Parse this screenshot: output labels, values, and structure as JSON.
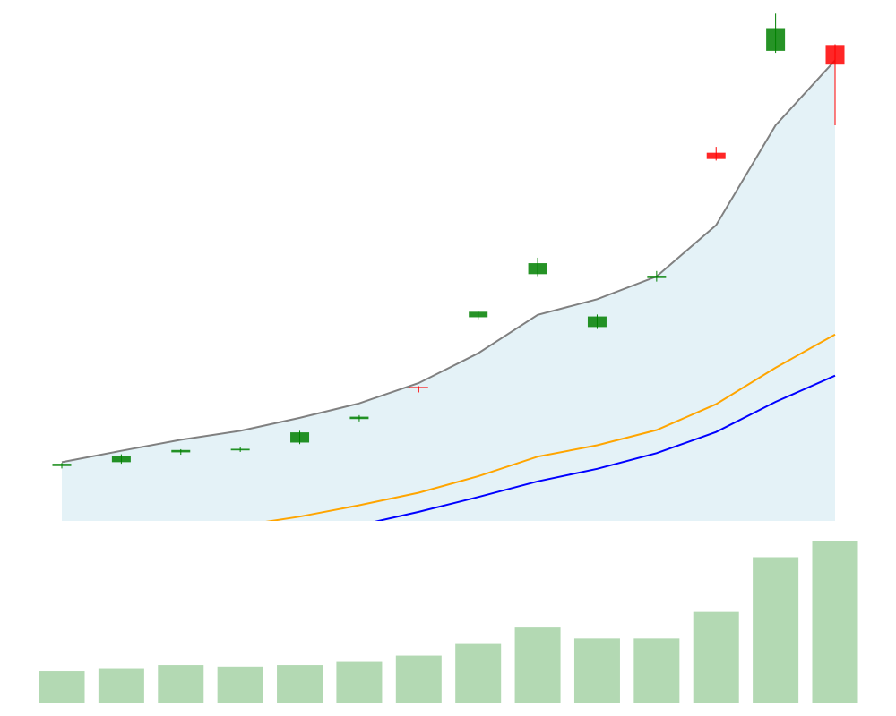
{
  "chart_data": [
    {
      "type": "candlestick",
      "x": [
        1,
        2,
        3,
        4,
        5,
        6,
        7,
        8,
        9,
        10,
        11,
        12,
        13,
        14
      ],
      "ohlc": [
        {
          "open": 100.0,
          "high": 100.8,
          "low": 99.4,
          "close": 100.6
        },
        {
          "open": 101.0,
          "high": 103.0,
          "low": 100.6,
          "close": 102.6
        },
        {
          "open": 103.5,
          "high": 104.3,
          "low": 102.9,
          "close": 104.1
        },
        {
          "open": 104.0,
          "high": 104.8,
          "low": 103.6,
          "close": 104.4
        },
        {
          "open": 106.0,
          "high": 109.0,
          "low": 105.6,
          "close": 108.6
        },
        {
          "open": 112.0,
          "high": 113.0,
          "low": 111.4,
          "close": 112.6
        },
        {
          "open": 120.2,
          "high": 120.4,
          "low": 118.8,
          "close": 120.0
        },
        {
          "open": 138.0,
          "high": 139.5,
          "low": 137.5,
          "close": 139.4
        },
        {
          "open": 149.0,
          "high": 153.2,
          "low": 148.5,
          "close": 151.8
        },
        {
          "open": 135.5,
          "high": 138.7,
          "low": 135.0,
          "close": 138.2
        },
        {
          "open": 148.0,
          "high": 149.8,
          "low": 147.1,
          "close": 148.6
        },
        {
          "open": 180.0,
          "high": 181.5,
          "low": 178.0,
          "close": 178.4
        },
        {
          "open": 206.0,
          "high": 215.5,
          "low": 205.5,
          "close": 211.8
        },
        {
          "open": 207.5,
          "high": 207.7,
          "low": 187.0,
          "close": 202.5
        }
      ],
      "up_color": "#008000",
      "down_color": "#ff0000",
      "overlays": [
        {
          "color": "#808080",
          "values": [
            101.0,
            103.9,
            106.7,
            109.0,
            112.3,
            116.0,
            121.2,
            128.8,
            138.6,
            142.6,
            148.4,
            161.5,
            187.0,
            203.6
          ],
          "fill_to_bottom": true,
          "fill_color": "#add8e6"
        },
        {
          "color": "#ffa500",
          "values": [
            75.5,
            78.0,
            82.2,
            84.8,
            87.1,
            90.0,
            93.2,
            97.4,
            102.4,
            105.3,
            109.2,
            115.8,
            125.1,
            133.6
          ]
        },
        {
          "color": "#0000ff",
          "values": [
            70.0,
            73.0,
            76.8,
            79.5,
            81.9,
            84.9,
            88.3,
            92.1,
            96.1,
            99.3,
            103.3,
            108.7,
            116.4,
            123.1
          ]
        }
      ],
      "ylim": [
        86,
        219
      ],
      "grid": false
    },
    {
      "type": "bar",
      "x": [
        1,
        2,
        3,
        4,
        5,
        6,
        7,
        8,
        9,
        10,
        11,
        12,
        13,
        14
      ],
      "values": [
        1000,
        1100,
        1200,
        1150,
        1200,
        1300,
        1500,
        1900,
        2400,
        2050,
        2050,
        2900,
        4650,
        5150
      ],
      "color": "#b3d9b3",
      "ylim": [
        0,
        5150
      ],
      "grid": false
    }
  ]
}
